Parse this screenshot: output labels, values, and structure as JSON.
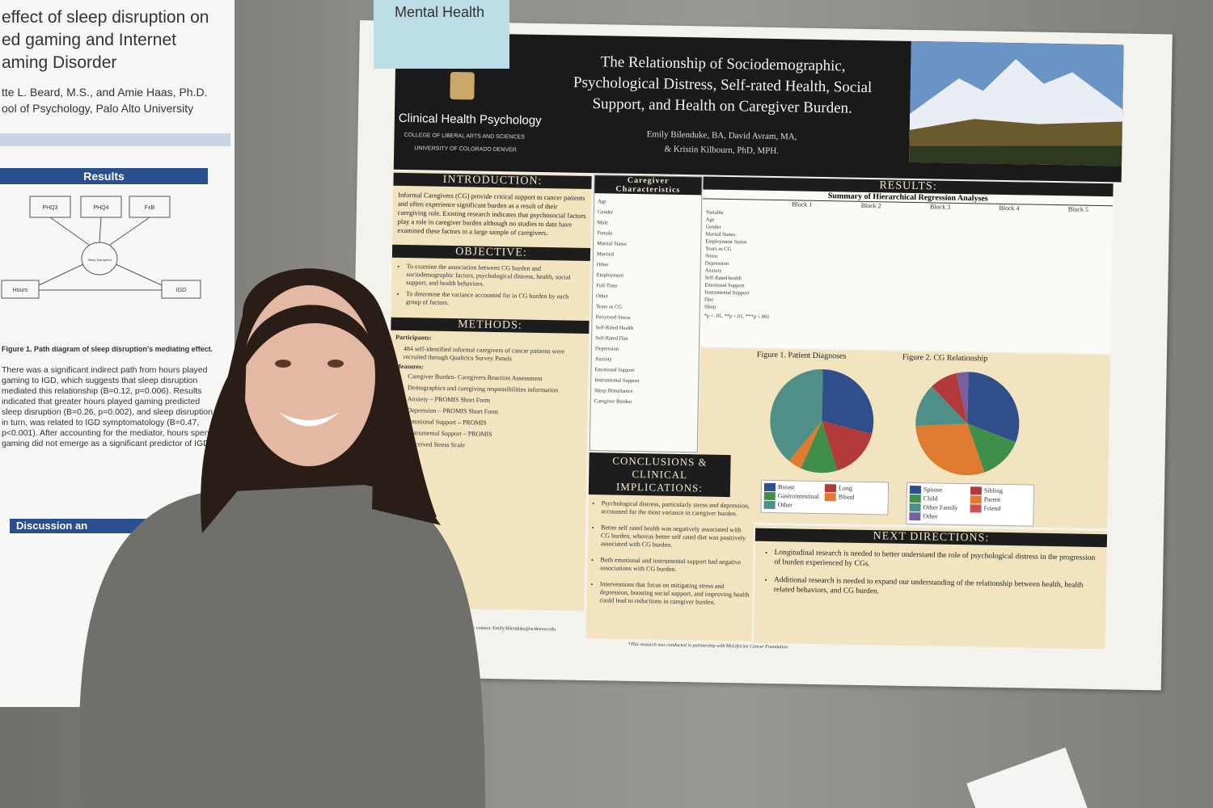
{
  "sign": "Mental Health",
  "left_poster": {
    "title_lines": [
      "effect of sleep disruption on",
      "ed gaming and Internet",
      "aming Disorder"
    ],
    "author_lines": [
      "tte L. Beard, M.S., and Amie Haas, Ph.D.",
      "ool of Psychology, Palo Alto University"
    ],
    "results_heading": "Results",
    "nodes": [
      "PHQ3",
      "PHQ4",
      "FxB",
      "Sleep Disruption",
      "Hours",
      "IGD"
    ],
    "caption": "Figure 1. Path diagram of sleep disruption's mediating effect.",
    "paragraph": [
      "There was a significant indirect path from hours played",
      "gaming to IGD, which suggests that sleep disruption",
      "mediated this relationship (B=0.12, p=0.006). Results",
      "indicated that greater hours played gaming predicted",
      "sleep disruption (B=0.26, p=0.002), and sleep disruption,",
      "in turn, was related to IGD symptomatology (B=0.47,",
      "p<0.001). After accounting for the mediator, hours spent",
      "gaming did not emerge as a significant predictor of IGD."
    ],
    "discussion_heading": "Discussion an"
  },
  "poster": {
    "program": "Clinical Health Psychology",
    "college": "COLLEGE OF LIBERAL ARTS AND SCIENCES",
    "university": "UNIVERSITY OF COLORADO DENVER",
    "title_lines": [
      "The Relationship of Sociodemographic,",
      "Psychological Distress, Self-rated Health, Social",
      "Support, and Health on Caregiver Burden."
    ],
    "author_lines": [
      "Emily Bilenduke, BA, David Avram, MA,",
      "& Kristin Kilbourn, PhD, MPH."
    ],
    "intro_heading": "INTRODUCTION:",
    "intro_text": "Informal Caregivers (CG) provide critical support to cancer patients and often experience significant burden as a result of their caregiving role. Existing research indicates that psychosocial factors play a role in caregiver burden although no studies to date have examined these factors in a large sample of caregivers.",
    "objective_heading": "OBJECTIVE:",
    "objectives": [
      "To examine the association between CG burden and sociodemographic factors, psychological distress, health, social support, and health behaviors.",
      "To determine the variance accounted for in CG burden by each group of factors."
    ],
    "methods_heading": "METHODS:",
    "participants_label": "Participants:",
    "participants": "484 self-identified informal caregivers of cancer patients were recruited through Qualtrics Survey Panels",
    "measures_label": "Measures:",
    "measures": [
      "Caregiver Burden- Caregivers Reaction Assessment",
      "Demographics and caregiving responsibilities information",
      "Anxiety – PROMIS Short Form",
      "Depression – PROMIS Short Form",
      "Emotional Support – PROMIS",
      "Instrumental Support – PROMIS",
      "Perceived Stress Scale"
    ],
    "characteristics_heading": "Caregiver Characteristics",
    "characteristics": [
      "Age",
      "Gender",
      "Male",
      "Female",
      "Marital Status",
      "Married",
      "Other",
      "Employment",
      "Full-Time",
      "Other",
      "Years as CG",
      "Perceived Stress",
      "Self-Rated Health",
      "Self-Rated Diet",
      "Depression",
      "Anxiety",
      "Emotional Support",
      "Instrumental Support",
      "Sleep Disturbance",
      "Caregiver Burden"
    ],
    "results_heading": "RESULTS:",
    "table_title": "Summary of Hierarchical Regression Analyses",
    "blocks": [
      "Block 1",
      "Block 2",
      "Block 3",
      "Block 4",
      "Block 5"
    ],
    "variables": [
      "Variable",
      "Age",
      "Gender",
      "Marital Status",
      "Employment Status",
      "Years as CG",
      "Stress",
      "Depression",
      "Anxiety",
      "Self-Rated health",
      "Emotional Support",
      "Instrumental Support",
      "Diet",
      "Sleep"
    ],
    "table_note": "*p < .05, **p <.01, ***p <.001",
    "fig1_title": "Figure 1. Patient Diagnoses",
    "fig1_legend": [
      "Breast",
      "Lung",
      "Gastrointestinal",
      "Blood",
      "Other"
    ],
    "fig2_title": "Figure 2. CG Relationship",
    "fig2_legend": [
      "Spouse",
      "Sibling",
      "Child",
      "Parent",
      "Other Family",
      "Friend",
      "Other"
    ],
    "conclusions_heading": [
      "CONCLUSIONS &",
      "CLINICAL",
      "IMPLICATIONS:"
    ],
    "conclusions": [
      "Psychological distress, particularly stress and depression, accounted for the most variance in caregiver burden.",
      "Better self rated health was negatively associated with CG burden, whereas better self rated diet was positively associated with CG burden.",
      "Both emotional and instrumental support had negative associations with CG burden.",
      "Interventions that focus on mitigating stress and depression, boosting social support, and improving health could lead to reductions in caregiver burden."
    ],
    "next_heading": "NEXT DIRECTIONS:",
    "next": [
      "Longitudinal research is needed to better understand the role of psychological distress in the progression of burden experienced by CGs.",
      "Additional research is needed to expand our understanding of the relationship between health, health related behaviors, and CG burden."
    ],
    "contact": "Please contact: Emily.Bilenduke@ucdenver.edu",
    "footnote": "*This research was conducted in partnership with MyLifeLine Cancer Foundation"
  }
}
